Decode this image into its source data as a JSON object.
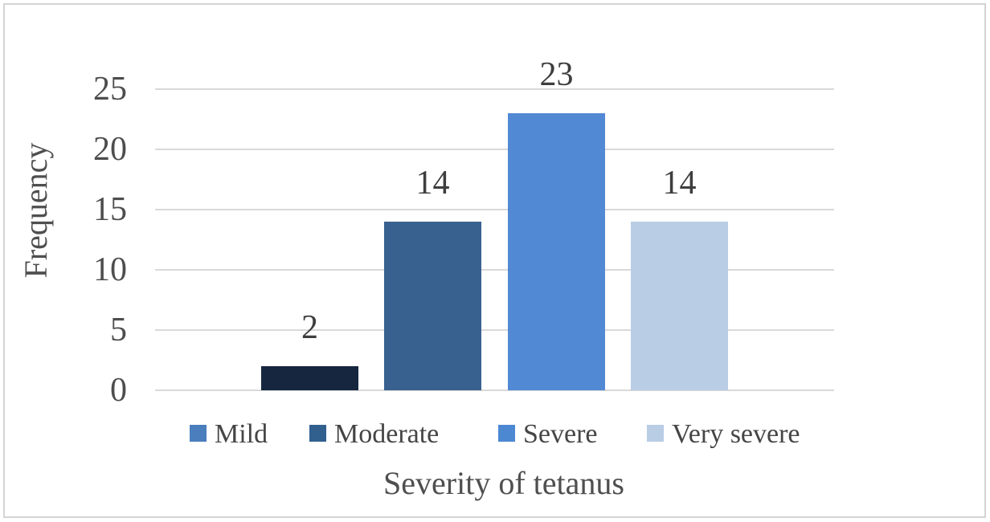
{
  "figure": {
    "background": "#ffffff",
    "border_color": "#d4d4d4"
  },
  "chart_data": {
    "type": "bar",
    "title": "",
    "xlabel": "Severity of tetanus",
    "ylabel": "Frequency",
    "categories": [
      "Mild",
      "Moderate",
      "Severe",
      "Very severe"
    ],
    "values": [
      2,
      14,
      23,
      14
    ],
    "data_labels": [
      "2",
      "14",
      "23",
      "14"
    ],
    "ylim": [
      0,
      25
    ],
    "yticks": [
      0,
      5,
      10,
      15,
      20,
      25
    ],
    "ytick_labels": [
      "0",
      "5",
      "10",
      "15",
      "20",
      "25"
    ],
    "grid": true,
    "legend_position": "bottom",
    "series": [
      {
        "name": "Mild",
        "value": 2,
        "bar_color": "#16263e",
        "legend_color": "#4a7ebc"
      },
      {
        "name": "Moderate",
        "value": 14,
        "bar_color": "#38618f",
        "legend_color": "#31608f"
      },
      {
        "name": "Severe",
        "value": 23,
        "bar_color": "#5289d4",
        "legend_color": "#4c87d2"
      },
      {
        "name": "Very severe",
        "value": 14,
        "bar_color": "#b9cde5",
        "legend_color": "#b9cde5"
      }
    ],
    "colors": {
      "gridline": "#d9d9d9",
      "tick_label_text": "#4d4d4d",
      "data_label_text": "#3e3e3e",
      "axis_title_text": "#4f4f4f",
      "legend_text": "#454545"
    }
  }
}
